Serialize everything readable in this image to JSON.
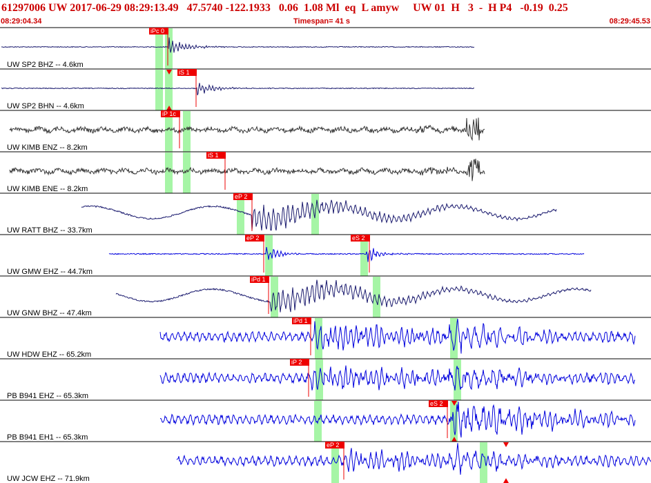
{
  "header": {
    "title": "61297006 UW 2017-06-29 08:29:13.49   47.5740 -122.1933   0.06  1.08 Ml  eq  L amyw     UW 01  H   3  -  H P4   -0.19  0.25",
    "time_start": "08:29:04.34",
    "timespan": "Timespan=  41 s",
    "time_end": "08:29:45.53"
  },
  "colors": {
    "pick_red": "#ee0000",
    "window_green": "#a6f5a6",
    "trace_navy": "#1a1a6e",
    "trace_blue": "#0000dd",
    "trace_gray": "#333333"
  },
  "channels": [
    {
      "label": "UW SP2 BHZ -- 4.6km",
      "color": "trace_navy",
      "picks": [
        "iPc 0"
      ],
      "windows": 2,
      "markers": []
    },
    {
      "label": "UW SP2 BHN -- 4.6km",
      "color": "trace_navy",
      "picks": [
        "iS 1"
      ],
      "windows": 2,
      "markers": [
        "down",
        "up"
      ]
    },
    {
      "label": "UW KIMB ENZ -- 8.2km",
      "color": "trace_gray",
      "picks": [
        "iP 1c"
      ],
      "windows": 2,
      "markers": []
    },
    {
      "label": "UW KIMB ENE -- 8.2km",
      "color": "trace_gray",
      "picks": [
        "iS 1"
      ],
      "windows": 2,
      "markers": []
    },
    {
      "label": "UW RATT BHZ -- 33.7km",
      "color": "trace_navy",
      "picks": [
        "eP 2"
      ],
      "windows": 2,
      "markers": []
    },
    {
      "label": "UW GMW EHZ -- 44.7km",
      "color": "trace_blue",
      "picks": [
        "eP 2",
        "eS 2"
      ],
      "windows": 2,
      "markers": []
    },
    {
      "label": "UW GNW BHZ -- 47.4km",
      "color": "trace_navy",
      "picks": [
        "iPd 1"
      ],
      "windows": 2,
      "markers": []
    },
    {
      "label": "UW HDW EHZ -- 65.2km",
      "color": "trace_blue",
      "picks": [
        "iPd 1"
      ],
      "windows": 2,
      "markers": []
    },
    {
      "label": "PB B941 EHZ -- 65.3km",
      "color": "trace_blue",
      "picks": [
        "iP 2"
      ],
      "windows": 2,
      "markers": []
    },
    {
      "label": "PB B941 EH1 -- 65.3km",
      "color": "trace_blue",
      "picks": [
        "eS 2"
      ],
      "windows": 2,
      "markers": [
        "down",
        "up"
      ]
    },
    {
      "label": "UW JCW EHZ -- 71.9km",
      "color": "trace_blue",
      "picks": [
        "eP 2"
      ],
      "windows": 2,
      "markers": [
        "down",
        "up"
      ]
    }
  ]
}
